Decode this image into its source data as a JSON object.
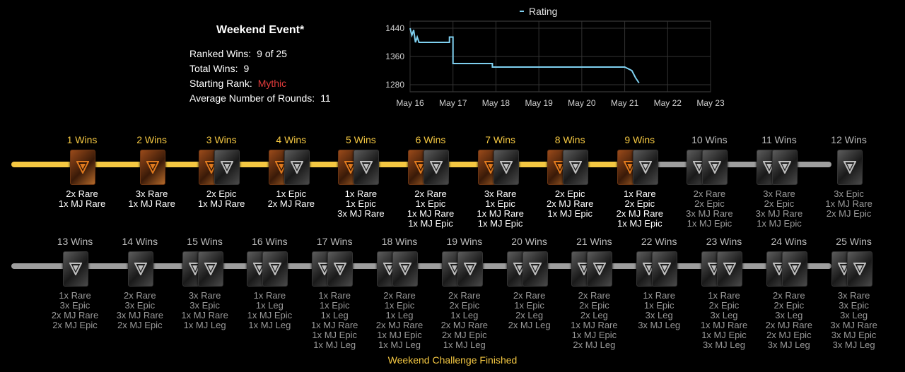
{
  "summary": {
    "title": "Weekend Event*",
    "ranked_wins_label": "Ranked Wins:",
    "ranked_wins_value": "9 of 25",
    "total_wins_label": "Total Wins:",
    "total_wins_value": "9",
    "starting_rank_label": "Starting Rank:",
    "starting_rank_value": "Mythic",
    "avg_rounds_label": "Average Number of Rounds:",
    "avg_rounds_value": "11"
  },
  "colors": {
    "won_bar": "#f5c842",
    "todo_bar": "#9e9e9e",
    "rating_line": "#7fd0f0",
    "rank": "#e23b3b"
  },
  "chart_data": {
    "type": "line",
    "series": [
      {
        "name": "Rating",
        "x": [
          "May 16",
          "May 16",
          "May 16",
          "May 16",
          "May 16",
          "May 16",
          "May 16",
          "May 16",
          "May 17",
          "May 17",
          "May 17",
          "May 17",
          "May 17",
          "May 19",
          "May 19",
          "May 19",
          "May 22",
          "May 22",
          "May 22",
          "May 22",
          "May 22",
          "May 22",
          "May 22",
          "May 22"
        ],
        "x_hours": [
          0,
          1,
          2,
          3,
          4,
          5,
          6,
          22,
          22,
          22,
          23,
          24,
          24,
          46,
          46,
          46,
          120,
          120,
          124,
          124,
          126,
          126,
          128,
          128
        ],
        "values": [
          1440,
          1420,
          1435,
          1400,
          1415,
          1400,
          1400,
          1400,
          1415,
          1415,
          1415,
          1415,
          1340,
          1340,
          1340,
          1330,
          1330,
          1330,
          1320,
          1320,
          1300,
          1300,
          1285,
          1285
        ]
      }
    ],
    "x_ticks": [
      "May 16",
      "May 17",
      "May 18",
      "May 19",
      "May 20",
      "May 21",
      "May 22",
      "May 23"
    ],
    "y_ticks": [
      1280,
      1360,
      1440
    ],
    "ylim": [
      1260,
      1460
    ],
    "legend": "top",
    "grid": true
  },
  "milestones": [
    {
      "label": "1 Wins",
      "packs": [
        "gold"
      ],
      "rewards": [
        "2x Rare",
        "1x MJ Rare"
      ],
      "won": true
    },
    {
      "label": "2 Wins",
      "packs": [
        "gold"
      ],
      "rewards": [
        "3x Rare",
        "1x MJ Rare"
      ],
      "won": true
    },
    {
      "label": "3 Wins",
      "packs": [
        "gold",
        "dark"
      ],
      "rewards": [
        "2x Epic",
        "1x MJ Rare"
      ],
      "won": true
    },
    {
      "label": "4 Wins",
      "packs": [
        "gold",
        "dark"
      ],
      "rewards": [
        "1x Epic",
        "2x MJ Rare"
      ],
      "won": true
    },
    {
      "label": "5 Wins",
      "packs": [
        "gold",
        "dark"
      ],
      "rewards": [
        "1x Rare",
        "1x Epic",
        "3x MJ Rare"
      ],
      "won": true
    },
    {
      "label": "6 Wins",
      "packs": [
        "gold",
        "dark"
      ],
      "rewards": [
        "2x Rare",
        "1x Epic",
        "1x MJ Rare",
        "1x MJ Epic"
      ],
      "won": true
    },
    {
      "label": "7 Wins",
      "packs": [
        "gold",
        "dark"
      ],
      "rewards": [
        "3x Rare",
        "1x Epic",
        "1x MJ Rare",
        "1x MJ Epic"
      ],
      "won": true
    },
    {
      "label": "8 Wins",
      "packs": [
        "gold",
        "dark"
      ],
      "rewards": [
        "2x Epic",
        "2x MJ Rare",
        "1x MJ Epic"
      ],
      "won": true
    },
    {
      "label": "9 Wins",
      "packs": [
        "gold",
        "dark"
      ],
      "rewards": [
        "1x Rare",
        "2x Epic",
        "2x MJ Rare",
        "1x MJ Epic"
      ],
      "won": true
    },
    {
      "label": "10 Wins",
      "packs": [
        "dark",
        "dark"
      ],
      "rewards": [
        "2x Rare",
        "2x Epic",
        "3x MJ Rare",
        "1x MJ Epic"
      ],
      "won": false
    },
    {
      "label": "11 Wins",
      "packs": [
        "dark",
        "dark"
      ],
      "rewards": [
        "3x Rare",
        "2x Epic",
        "3x MJ Rare",
        "1x MJ Epic"
      ],
      "won": false
    },
    {
      "label": "12 Wins",
      "packs": [
        "dark"
      ],
      "rewards": [
        "3x Epic",
        "1x MJ Rare",
        "2x MJ Epic"
      ],
      "won": false
    },
    {
      "label": "13 Wins",
      "packs": [
        "dark"
      ],
      "rewards": [
        "1x Rare",
        "3x Epic",
        "2x MJ Rare",
        "2x MJ Epic"
      ],
      "won": false
    },
    {
      "label": "14 Wins",
      "packs": [
        "dark"
      ],
      "rewards": [
        "2x Rare",
        "3x Epic",
        "3x MJ Rare",
        "2x MJ Epic"
      ],
      "won": false
    },
    {
      "label": "15 Wins",
      "packs": [
        "dark",
        "dark"
      ],
      "rewards": [
        "3x Rare",
        "3x Epic",
        "1x MJ Rare",
        "1x MJ Leg"
      ],
      "won": false
    },
    {
      "label": "16 Wins",
      "packs": [
        "dark",
        "dark"
      ],
      "rewards": [
        "1x Rare",
        "1x Leg",
        "1x MJ Epic",
        "1x MJ Leg"
      ],
      "won": false
    },
    {
      "label": "17 Wins",
      "packs": [
        "dark",
        "dark"
      ],
      "rewards": [
        "1x Rare",
        "1x Epic",
        "1x Leg",
        "1x MJ Rare",
        "1x MJ Epic",
        "1x MJ Leg"
      ],
      "won": false
    },
    {
      "label": "18 Wins",
      "packs": [
        "dark",
        "dark"
      ],
      "rewards": [
        "2x Rare",
        "1x Epic",
        "1x Leg",
        "2x MJ Rare",
        "1x MJ Epic",
        "1x MJ Leg"
      ],
      "won": false
    },
    {
      "label": "19 Wins",
      "packs": [
        "dark",
        "dark"
      ],
      "rewards": [
        "2x Rare",
        "2x Epic",
        "1x Leg",
        "2x MJ Rare",
        "2x MJ Epic",
        "1x MJ Leg"
      ],
      "won": false
    },
    {
      "label": "20 Wins",
      "packs": [
        "dark",
        "dark"
      ],
      "rewards": [
        "2x Rare",
        "1x Epic",
        "2x Leg",
        "2x MJ Leg"
      ],
      "won": false
    },
    {
      "label": "21 Wins",
      "packs": [
        "dark",
        "dark"
      ],
      "rewards": [
        "2x Rare",
        "2x Epic",
        "2x Leg",
        "1x MJ Rare",
        "1x MJ Epic",
        "2x MJ Leg"
      ],
      "won": false
    },
    {
      "label": "22 Wins",
      "packs": [
        "dark",
        "dark"
      ],
      "rewards": [
        "1x Rare",
        "1x Epic",
        "3x Leg",
        "3x MJ Leg"
      ],
      "won": false
    },
    {
      "label": "23 Wins",
      "packs": [
        "dark",
        "dark"
      ],
      "rewards": [
        "1x Rare",
        "2x Epic",
        "3x Leg",
        "1x MJ Rare",
        "1x MJ Epic",
        "3x MJ Leg"
      ],
      "won": false
    },
    {
      "label": "24 Wins",
      "packs": [
        "dark",
        "dark"
      ],
      "rewards": [
        "2x Rare",
        "2x Epic",
        "3x Leg",
        "2x MJ Rare",
        "2x MJ Epic",
        "3x MJ Leg"
      ],
      "won": false
    },
    {
      "label": "25 Wins",
      "packs": [
        "dark",
        "dark"
      ],
      "rewards": [
        "3x Rare",
        "3x Epic",
        "3x Leg",
        "3x MJ Rare",
        "3x MJ Epic",
        "3x MJ Leg"
      ],
      "won": false
    }
  ],
  "footer": "Weekend Challenge Finished"
}
